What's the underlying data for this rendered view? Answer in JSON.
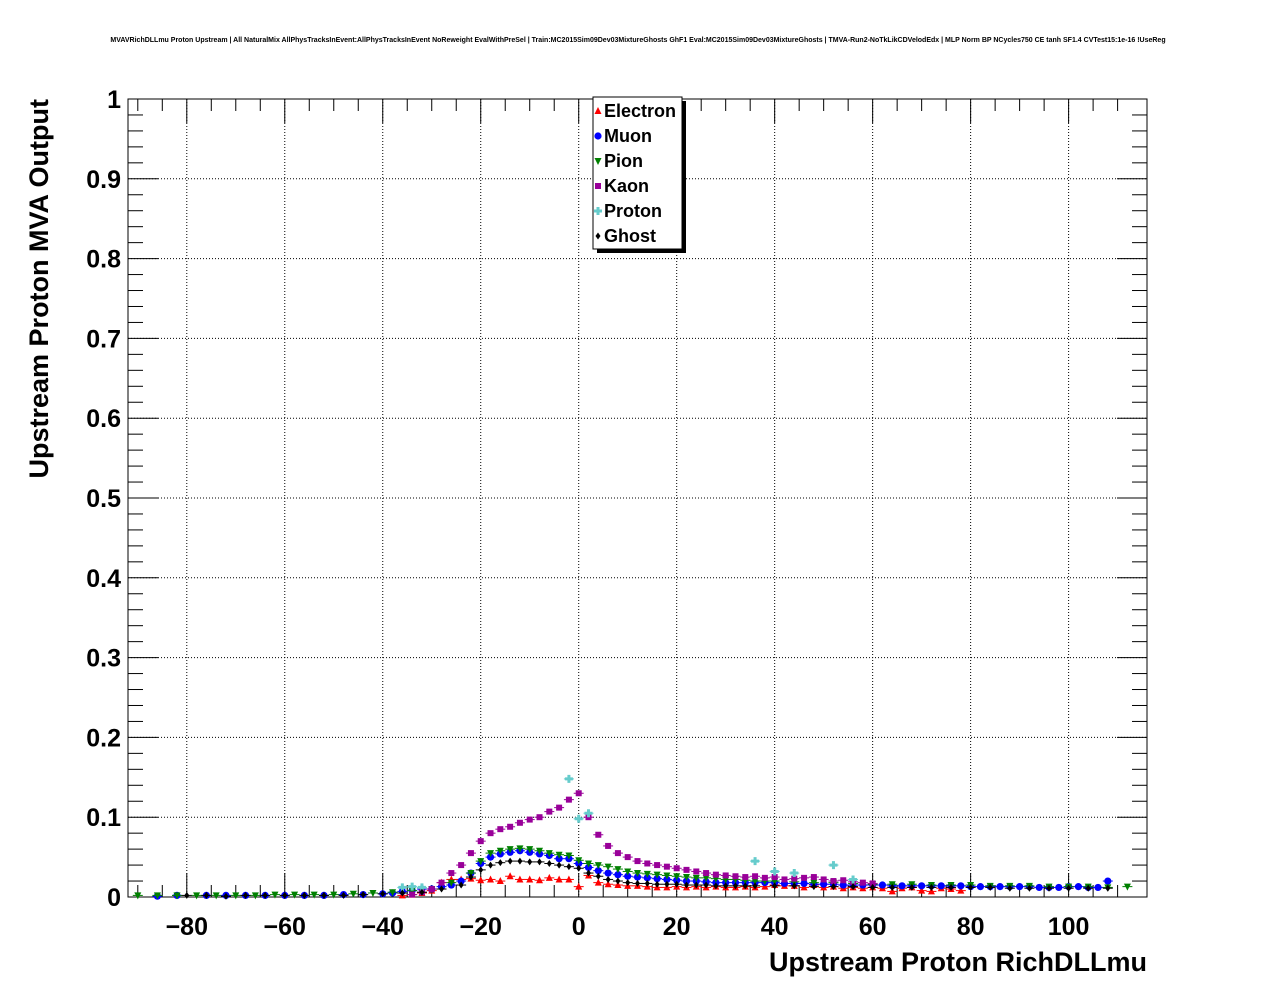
{
  "chart_data": {
    "type": "scatter",
    "title": "MVAVRichDLLmu Proton Upstream | All NaturalMix AllPhysTracksInEvent:AllPhysTracksInEvent NoReweight EvalWithPreSel | Train:MC2015Sim09Dev03MixtureGhosts GhF1 Eval:MC2015Sim09Dev03MixtureGhosts | TMVA-Run2-NoTkLikCDVelodEdx | MLP Norm BP NCycles750 CE tanh SF1.4 CVTest15:1e-16 !UseReg",
    "xlabel": "Upstream Proton RichDLLmu",
    "ylabel": "Upstream Proton MVA Output",
    "xlim": [
      -92,
      116
    ],
    "ylim": [
      0,
      1
    ],
    "x_ticks": [
      -80,
      -60,
      -40,
      -20,
      0,
      20,
      40,
      60,
      80,
      100
    ],
    "x_tick_labels": [
      "−80",
      "−60",
      "−40",
      "−20",
      "0",
      "20",
      "40",
      "60",
      "80",
      "100"
    ],
    "y_ticks": [
      0,
      0.1,
      0.2,
      0.3,
      0.4,
      0.5,
      0.6,
      0.7,
      0.8,
      0.9,
      1
    ],
    "y_tick_labels": [
      "0",
      "0.1",
      "0.2",
      "0.3",
      "0.4",
      "0.5",
      "0.6",
      "0.7",
      "0.8",
      "0.9",
      "1"
    ],
    "grid": true,
    "legend_position": "top-center",
    "series": [
      {
        "name": "Electron",
        "color": "#ff0000",
        "marker": "triangle-up",
        "x": [
          -36,
          -34,
          -32,
          -30,
          -28,
          -26,
          -24,
          -22,
          -20,
          -18,
          -16,
          -14,
          -12,
          -10,
          -8,
          -6,
          -4,
          -2,
          0,
          2,
          4,
          6,
          8,
          10,
          12,
          14,
          16,
          18,
          20,
          22,
          24,
          26,
          28,
          30,
          32,
          34,
          36,
          38,
          40,
          42,
          44,
          46,
          48,
          50,
          52,
          54,
          56,
          58,
          60,
          62,
          64,
          66,
          68,
          70,
          72,
          74,
          76,
          78
        ],
        "y": [
          0.002,
          0.003,
          0.005,
          0.008,
          0.018,
          0.022,
          0.022,
          0.023,
          0.021,
          0.022,
          0.02,
          0.026,
          0.022,
          0.022,
          0.021,
          0.024,
          0.022,
          0.022,
          0.013,
          0.027,
          0.018,
          0.016,
          0.015,
          0.014,
          0.014,
          0.013,
          0.012,
          0.012,
          0.013,
          0.012,
          0.013,
          0.012,
          0.013,
          0.012,
          0.012,
          0.013,
          0.012,
          0.013,
          0.015,
          0.014,
          0.014,
          0.012,
          0.015,
          0.012,
          0.013,
          0.011,
          0.012,
          0.011,
          0.012,
          0.011,
          0.007,
          0.011,
          0.012,
          0.008,
          0.007,
          0.011,
          0.01,
          0.008
        ]
      },
      {
        "name": "Muon",
        "color": "#0000ff",
        "marker": "circle",
        "x": [
          -86,
          -82,
          -76,
          -72,
          -68,
          -64,
          -60,
          -56,
          -52,
          -48,
          -44,
          -40,
          -38,
          -36,
          -34,
          -32,
          -30,
          -28,
          -26,
          -24,
          -22,
          -20,
          -18,
          -16,
          -14,
          -12,
          -10,
          -8,
          -6,
          -4,
          -2,
          0,
          2,
          4,
          6,
          8,
          10,
          12,
          14,
          16,
          18,
          20,
          22,
          24,
          26,
          28,
          30,
          32,
          34,
          36,
          38,
          40,
          42,
          44,
          46,
          48,
          50,
          52,
          54,
          56,
          58,
          60,
          62,
          64,
          66,
          68,
          70,
          72,
          74,
          76,
          78,
          80,
          82,
          84,
          86,
          88,
          90,
          92,
          94,
          96,
          98,
          100,
          102,
          104,
          106,
          108
        ],
        "y": [
          0.001,
          0.002,
          0.002,
          0.002,
          0.002,
          0.002,
          0.002,
          0.002,
          0.002,
          0.003,
          0.003,
          0.004,
          0.005,
          0.007,
          0.008,
          0.01,
          0.01,
          0.013,
          0.015,
          0.02,
          0.03,
          0.042,
          0.05,
          0.054,
          0.056,
          0.058,
          0.056,
          0.054,
          0.052,
          0.048,
          0.048,
          0.042,
          0.037,
          0.033,
          0.03,
          0.028,
          0.026,
          0.025,
          0.024,
          0.023,
          0.022,
          0.021,
          0.02,
          0.02,
          0.019,
          0.018,
          0.018,
          0.018,
          0.018,
          0.018,
          0.018,
          0.018,
          0.017,
          0.017,
          0.017,
          0.016,
          0.016,
          0.016,
          0.015,
          0.015,
          0.015,
          0.015,
          0.015,
          0.014,
          0.014,
          0.014,
          0.014,
          0.014,
          0.014,
          0.014,
          0.014,
          0.013,
          0.013,
          0.013,
          0.013,
          0.013,
          0.013,
          0.013,
          0.012,
          0.012,
          0.012,
          0.013,
          0.013,
          0.012,
          0.012,
          0.02
        ]
      },
      {
        "name": "Pion",
        "color": "#008000",
        "marker": "triangle-down",
        "x": [
          -90,
          -86,
          -82,
          -78,
          -74,
          -70,
          -66,
          -62,
          -58,
          -54,
          -50,
          -46,
          -42,
          -38,
          -34,
          -30,
          -26,
          -22,
          -20,
          -18,
          -16,
          -14,
          -12,
          -10,
          -8,
          -6,
          -4,
          -2,
          0,
          2,
          4,
          6,
          8,
          10,
          12,
          14,
          16,
          18,
          20,
          22,
          24,
          26,
          28,
          30,
          32,
          34,
          36,
          38,
          40,
          44,
          48,
          52,
          56,
          60,
          64,
          68,
          72,
          76,
          80,
          84,
          88,
          92,
          96,
          100,
          104,
          108,
          112
        ],
        "y": [
          0.002,
          0.002,
          0.002,
          0.002,
          0.002,
          0.002,
          0.002,
          0.003,
          0.003,
          0.003,
          0.003,
          0.004,
          0.005,
          0.006,
          0.008,
          0.01,
          0.018,
          0.03,
          0.045,
          0.055,
          0.058,
          0.06,
          0.061,
          0.06,
          0.058,
          0.055,
          0.053,
          0.052,
          0.046,
          0.042,
          0.04,
          0.038,
          0.035,
          0.032,
          0.03,
          0.029,
          0.028,
          0.027,
          0.026,
          0.025,
          0.024,
          0.024,
          0.023,
          0.022,
          0.022,
          0.021,
          0.02,
          0.02,
          0.02,
          0.019,
          0.018,
          0.018,
          0.017,
          0.016,
          0.016,
          0.016,
          0.015,
          0.015,
          0.015,
          0.014,
          0.014,
          0.014,
          0.013,
          0.013,
          0.013,
          0.012,
          0.013
        ]
      },
      {
        "name": "Kaon",
        "color": "#990099",
        "marker": "square",
        "x": [
          -34,
          -32,
          -30,
          -28,
          -26,
          -24,
          -22,
          -20,
          -18,
          -16,
          -14,
          -12,
          -10,
          -8,
          -6,
          -4,
          -2,
          0,
          2,
          4,
          6,
          8,
          10,
          12,
          14,
          16,
          18,
          20,
          22,
          24,
          26,
          28,
          30,
          32,
          34,
          36,
          38,
          40,
          42,
          44,
          46,
          48,
          50,
          52,
          54,
          56,
          58,
          60
        ],
        "y": [
          0.003,
          0.006,
          0.01,
          0.018,
          0.03,
          0.04,
          0.055,
          0.07,
          0.08,
          0.085,
          0.088,
          0.093,
          0.097,
          0.1,
          0.107,
          0.112,
          0.122,
          0.13,
          0.1,
          0.078,
          0.064,
          0.055,
          0.05,
          0.045,
          0.042,
          0.04,
          0.038,
          0.036,
          0.034,
          0.032,
          0.03,
          0.028,
          0.027,
          0.026,
          0.025,
          0.026,
          0.024,
          0.025,
          0.022,
          0.023,
          0.024,
          0.025,
          0.022,
          0.02,
          0.021,
          0.019,
          0.018,
          0.017
        ]
      },
      {
        "name": "Proton",
        "color": "#66cccc",
        "marker": "cross",
        "x": [
          -36,
          -34,
          -32,
          -2,
          0,
          2,
          36,
          40,
          44,
          52,
          56
        ],
        "y": [
          0.012,
          0.013,
          0.012,
          0.148,
          0.098,
          0.105,
          0.045,
          0.032,
          0.03,
          0.04,
          0.022
        ]
      },
      {
        "name": "Ghost",
        "color": "#000000",
        "marker": "diamond",
        "x": [
          -80,
          -76,
          -72,
          -68,
          -64,
          -60,
          -56,
          -52,
          -48,
          -44,
          -40,
          -36,
          -32,
          -28,
          -24,
          -22,
          -20,
          -18,
          -16,
          -14,
          -12,
          -10,
          -8,
          -6,
          -4,
          -2,
          0,
          2,
          4,
          6,
          8,
          10,
          12,
          14,
          16,
          18,
          20,
          22,
          24,
          26,
          28,
          30,
          32,
          34,
          36,
          40,
          44,
          48,
          52,
          56,
          60,
          64,
          68,
          72,
          76,
          80,
          84,
          88,
          92,
          96,
          100,
          104,
          108
        ],
        "y": [
          0.002,
          0.002,
          0.001,
          0.002,
          0.002,
          0.002,
          0.002,
          0.002,
          0.002,
          0.003,
          0.004,
          0.005,
          0.006,
          0.01,
          0.015,
          0.025,
          0.034,
          0.04,
          0.043,
          0.045,
          0.045,
          0.044,
          0.044,
          0.042,
          0.04,
          0.038,
          0.036,
          0.03,
          0.026,
          0.022,
          0.02,
          0.018,
          0.017,
          0.017,
          0.016,
          0.016,
          0.016,
          0.015,
          0.015,
          0.015,
          0.014,
          0.014,
          0.014,
          0.014,
          0.014,
          0.014,
          0.014,
          0.013,
          0.013,
          0.013,
          0.012,
          0.012,
          0.012,
          0.012,
          0.012,
          0.012,
          0.012,
          0.011,
          0.011,
          0.011,
          0.011,
          0.011,
          0.011
        ]
      }
    ]
  }
}
